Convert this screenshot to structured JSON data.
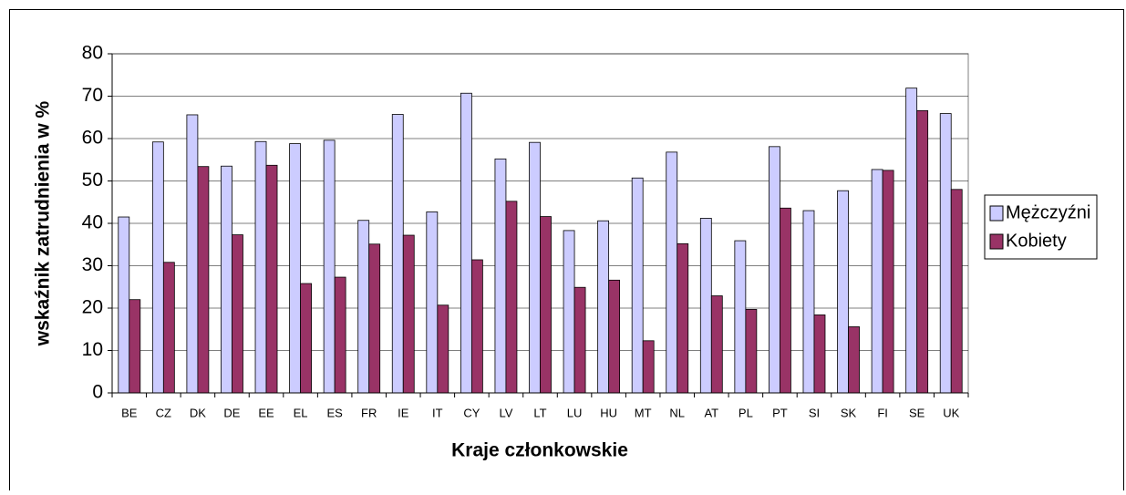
{
  "chart_data": {
    "type": "bar",
    "y_label": "wskaźnik zatrudnienia w %",
    "x_label": "Kraje członkowskie",
    "categories": [
      "BE",
      "CZ",
      "DK",
      "DE",
      "EE",
      "EL",
      "ES",
      "FR",
      "IE",
      "IT",
      "CY",
      "LV",
      "LT",
      "LU",
      "HU",
      "MT",
      "NL",
      "AT",
      "PL",
      "PT",
      "SI",
      "SK",
      "FI",
      "SE",
      "UK"
    ],
    "series": [
      {
        "name": "Mężczyźni",
        "color": "#ccccff",
        "values": [
          41.5,
          59.2,
          65.6,
          53.5,
          59.3,
          58.8,
          59.6,
          40.7,
          65.7,
          42.7,
          70.7,
          55.2,
          59.1,
          38.3,
          40.6,
          50.7,
          56.8,
          41.2,
          35.9,
          58.1,
          43.0,
          47.7,
          52.7,
          71.9,
          65.9
        ]
      },
      {
        "name": "Kobiety",
        "color": "#993366",
        "values": [
          22.0,
          30.8,
          53.4,
          37.3,
          53.7,
          25.8,
          27.3,
          35.1,
          37.2,
          20.7,
          31.4,
          45.2,
          41.6,
          24.9,
          26.6,
          12.3,
          35.2,
          22.9,
          19.7,
          43.6,
          18.4,
          15.6,
          52.5,
          66.6,
          48.0
        ]
      }
    ],
    "ylim": [
      0,
      80
    ],
    "yticks": [
      0,
      10,
      20,
      30,
      40,
      50,
      60,
      70,
      80
    ],
    "grid": true,
    "legend": "right"
  }
}
